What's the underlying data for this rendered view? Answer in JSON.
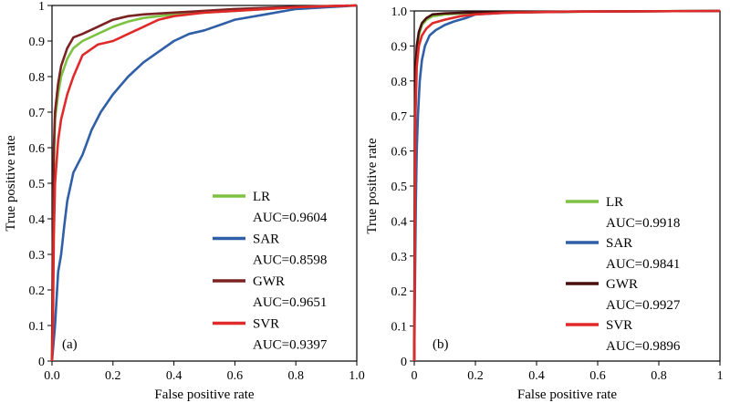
{
  "chart_data": [
    {
      "type": "line",
      "panel_label": "(a)",
      "xlabel": "False positive rate",
      "ylabel": "True positive rate",
      "xlim": [
        0,
        1
      ],
      "ylim": [
        0,
        1
      ],
      "x_ticks": [
        "0.0",
        "0.2",
        "0.4",
        "0.6",
        "0.8",
        "1.0"
      ],
      "y_ticks": [
        "0",
        "0.1",
        "0.2",
        "0.3",
        "0.4",
        "0.5",
        "0.6",
        "0.7",
        "0.8",
        "0.9",
        "1"
      ],
      "grid": false,
      "legend_position": "bottom-right",
      "series": [
        {
          "name": "LR",
          "auc_label": "AUC=0.9604",
          "color": "#7dc242",
          "points": [
            [
              0,
              0
            ],
            [
              0.003,
              0.3
            ],
            [
              0.006,
              0.55
            ],
            [
              0.01,
              0.68
            ],
            [
              0.02,
              0.75
            ],
            [
              0.03,
              0.8
            ],
            [
              0.05,
              0.85
            ],
            [
              0.07,
              0.88
            ],
            [
              0.1,
              0.9
            ],
            [
              0.15,
              0.92
            ],
            [
              0.2,
              0.94
            ],
            [
              0.25,
              0.955
            ],
            [
              0.3,
              0.965
            ],
            [
              0.4,
              0.975
            ],
            [
              0.5,
              0.98
            ],
            [
              0.6,
              0.985
            ],
            [
              0.7,
              0.99
            ],
            [
              0.8,
              0.995
            ],
            [
              0.9,
              0.998
            ],
            [
              1,
              1
            ]
          ]
        },
        {
          "name": "SAR",
          "auc_label": "AUC=0.8598",
          "color": "#2f5fa7",
          "points": [
            [
              0,
              0
            ],
            [
              0.01,
              0.1
            ],
            [
              0.02,
              0.25
            ],
            [
              0.03,
              0.3
            ],
            [
              0.04,
              0.38
            ],
            [
              0.05,
              0.45
            ],
            [
              0.07,
              0.53
            ],
            [
              0.1,
              0.58
            ],
            [
              0.13,
              0.65
            ],
            [
              0.16,
              0.7
            ],
            [
              0.2,
              0.75
            ],
            [
              0.25,
              0.8
            ],
            [
              0.3,
              0.84
            ],
            [
              0.35,
              0.87
            ],
            [
              0.4,
              0.9
            ],
            [
              0.45,
              0.92
            ],
            [
              0.5,
              0.93
            ],
            [
              0.55,
              0.945
            ],
            [
              0.6,
              0.96
            ],
            [
              0.7,
              0.975
            ],
            [
              0.8,
              0.99
            ],
            [
              0.9,
              0.995
            ],
            [
              1,
              1
            ]
          ]
        },
        {
          "name": "GWR",
          "auc_label": "AUC=0.9651",
          "color": "#7b2222",
          "points": [
            [
              0,
              0
            ],
            [
              0.003,
              0.35
            ],
            [
              0.006,
              0.6
            ],
            [
              0.01,
              0.7
            ],
            [
              0.02,
              0.78
            ],
            [
              0.03,
              0.83
            ],
            [
              0.05,
              0.88
            ],
            [
              0.07,
              0.91
            ],
            [
              0.1,
              0.92
            ],
            [
              0.15,
              0.94
            ],
            [
              0.2,
              0.96
            ],
            [
              0.25,
              0.97
            ],
            [
              0.3,
              0.975
            ],
            [
              0.4,
              0.98
            ],
            [
              0.5,
              0.985
            ],
            [
              0.6,
              0.99
            ],
            [
              0.7,
              0.993
            ],
            [
              0.8,
              0.996
            ],
            [
              0.9,
              0.998
            ],
            [
              1,
              1
            ]
          ]
        },
        {
          "name": "SVR",
          "auc_label": "AUC=0.9397",
          "color": "#e02a2a",
          "points": [
            [
              0,
              0
            ],
            [
              0.003,
              0.1
            ],
            [
              0.006,
              0.35
            ],
            [
              0.01,
              0.5
            ],
            [
              0.02,
              0.62
            ],
            [
              0.03,
              0.68
            ],
            [
              0.05,
              0.75
            ],
            [
              0.07,
              0.8
            ],
            [
              0.1,
              0.86
            ],
            [
              0.15,
              0.89
            ],
            [
              0.2,
              0.9
            ],
            [
              0.25,
              0.92
            ],
            [
              0.3,
              0.94
            ],
            [
              0.35,
              0.96
            ],
            [
              0.4,
              0.97
            ],
            [
              0.5,
              0.98
            ],
            [
              0.6,
              0.985
            ],
            [
              0.7,
              0.99
            ],
            [
              0.8,
              0.995
            ],
            [
              0.9,
              0.998
            ],
            [
              1,
              1
            ]
          ]
        }
      ]
    },
    {
      "type": "line",
      "panel_label": "(b)",
      "xlabel": "False positive rate",
      "ylabel": "True positive rate",
      "xlim": [
        0,
        1
      ],
      "ylim": [
        0,
        1
      ],
      "x_ticks": [
        "0",
        "0.2",
        "0.4",
        "0.6",
        "0.8",
        "1"
      ],
      "y_ticks": [
        "0",
        "0.1",
        "0.2",
        "0.3",
        "0.4",
        "0.5",
        "0.6",
        "0.7",
        "0.8",
        "0.9",
        "1.0"
      ],
      "grid": false,
      "legend_position": "bottom-right",
      "series": [
        {
          "name": "LR",
          "auc_label": "AUC=0.9918",
          "color": "#7dc242",
          "points": [
            [
              0,
              0
            ],
            [
              0.002,
              0.6
            ],
            [
              0.004,
              0.8
            ],
            [
              0.008,
              0.88
            ],
            [
              0.015,
              0.93
            ],
            [
              0.025,
              0.96
            ],
            [
              0.04,
              0.975
            ],
            [
              0.06,
              0.985
            ],
            [
              0.1,
              0.99
            ],
            [
              0.2,
              0.995
            ],
            [
              0.4,
              0.997
            ],
            [
              0.7,
              0.999
            ],
            [
              1,
              1
            ]
          ]
        },
        {
          "name": "SAR",
          "auc_label": "AUC=0.9841",
          "color": "#2f5fa7",
          "points": [
            [
              0,
              0
            ],
            [
              0.002,
              0.2
            ],
            [
              0.005,
              0.45
            ],
            [
              0.008,
              0.6
            ],
            [
              0.012,
              0.7
            ],
            [
              0.018,
              0.8
            ],
            [
              0.025,
              0.86
            ],
            [
              0.035,
              0.9
            ],
            [
              0.05,
              0.93
            ],
            [
              0.07,
              0.945
            ],
            [
              0.1,
              0.96
            ],
            [
              0.13,
              0.97
            ],
            [
              0.17,
              0.98
            ],
            [
              0.2,
              0.99
            ],
            [
              0.3,
              0.995
            ],
            [
              0.5,
              0.998
            ],
            [
              1,
              1
            ]
          ]
        },
        {
          "name": "GWR",
          "auc_label": "AUC=0.9927",
          "color": "#4a0e0e",
          "points": [
            [
              0,
              0
            ],
            [
              0.002,
              0.65
            ],
            [
              0.004,
              0.82
            ],
            [
              0.008,
              0.9
            ],
            [
              0.015,
              0.94
            ],
            [
              0.025,
              0.965
            ],
            [
              0.04,
              0.98
            ],
            [
              0.06,
              0.99
            ],
            [
              0.1,
              0.993
            ],
            [
              0.2,
              0.996
            ],
            [
              0.5,
              0.998
            ],
            [
              1,
              1
            ]
          ]
        },
        {
          "name": "SVR",
          "auc_label": "AUC=0.9896",
          "color": "#e02a2a",
          "points": [
            [
              0,
              0
            ],
            [
              0.002,
              0.4
            ],
            [
              0.004,
              0.7
            ],
            [
              0.008,
              0.84
            ],
            [
              0.015,
              0.9
            ],
            [
              0.025,
              0.93
            ],
            [
              0.04,
              0.95
            ],
            [
              0.06,
              0.965
            ],
            [
              0.1,
              0.975
            ],
            [
              0.15,
              0.985
            ],
            [
              0.2,
              0.99
            ],
            [
              0.3,
              0.995
            ],
            [
              0.5,
              0.998
            ],
            [
              1,
              1
            ]
          ]
        }
      ]
    }
  ]
}
